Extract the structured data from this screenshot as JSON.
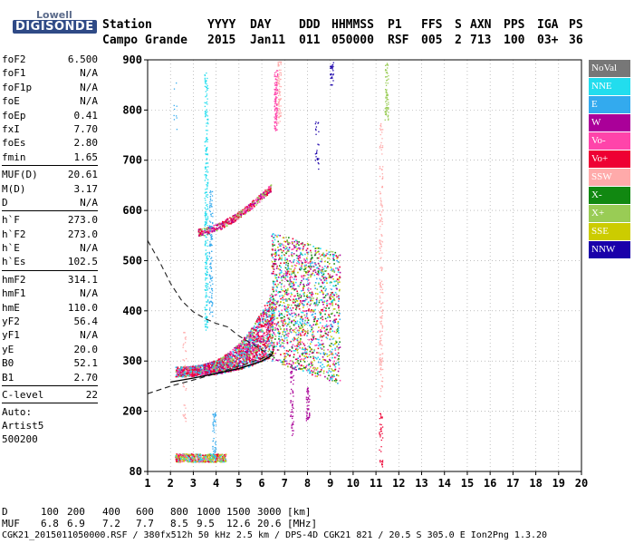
{
  "logo": {
    "line1": "Lowell",
    "line2": "DIGISONDE"
  },
  "header": {
    "station_label": "Station",
    "station_name": "Campo Grande",
    "columns": [
      "YYYY",
      "DAY",
      "DDD",
      "HHMMSS",
      "P1",
      "FFS",
      "S",
      "AXN",
      "PPS",
      "IGA",
      "PS"
    ],
    "values": [
      "2015",
      "Jan11",
      "011",
      "050000",
      "RSF",
      "005",
      "2",
      "713",
      "100",
      "03+",
      "36"
    ]
  },
  "params": {
    "group1": [
      {
        "name": "foF2",
        "value": "6.500"
      },
      {
        "name": "foF1",
        "value": "N/A"
      },
      {
        "name": "foF1p",
        "value": "N/A"
      },
      {
        "name": "foE",
        "value": "N/A"
      },
      {
        "name": "foEp",
        "value": "0.41"
      },
      {
        "name": "fxI",
        "value": "7.70"
      },
      {
        "name": "foEs",
        "value": "2.80"
      },
      {
        "name": "fmin",
        "value": "1.65"
      }
    ],
    "group2": [
      {
        "name": "MUF(D)",
        "value": "20.61"
      },
      {
        "name": "M(D)",
        "value": "3.17"
      },
      {
        "name": "D",
        "value": "N/A"
      }
    ],
    "group3": [
      {
        "name": "h`F",
        "value": "273.0"
      },
      {
        "name": "h`F2",
        "value": "273.0"
      },
      {
        "name": "h`E",
        "value": "N/A"
      },
      {
        "name": "h`Es",
        "value": "102.5"
      }
    ],
    "group4": [
      {
        "name": "hmF2",
        "value": "314.1"
      },
      {
        "name": "hmF1",
        "value": "N/A"
      },
      {
        "name": "hmE",
        "value": "110.0"
      },
      {
        "name": "yF2",
        "value": "56.4"
      },
      {
        "name": "yF1",
        "value": "N/A"
      },
      {
        "name": "yE",
        "value": "20.0"
      },
      {
        "name": "B0",
        "value": "52.1"
      },
      {
        "name": "B1",
        "value": "2.70"
      }
    ],
    "group5": [
      {
        "name": "C-level",
        "value": "22"
      }
    ],
    "auto_label": "Auto:",
    "artist": "Artist5",
    "code": "500200"
  },
  "legend": [
    {
      "label": "NoVal",
      "color": "#777777"
    },
    {
      "label": "NNE",
      "color": "#22ddee"
    },
    {
      "label": "E",
      "color": "#33aaee"
    },
    {
      "label": "W",
      "color": "#aa0099"
    },
    {
      "label": "Vo-",
      "color": "#ff44aa"
    },
    {
      "label": "Vo+",
      "color": "#ee0033"
    },
    {
      "label": "SSW",
      "color": "#ffaaaa"
    },
    {
      "label": "X-",
      "color": "#118811"
    },
    {
      "label": "X+",
      "color": "#99cc55"
    },
    {
      "label": "SSE",
      "color": "#cccc00"
    },
    {
      "label": "NNW",
      "color": "#1a00aa"
    }
  ],
  "chart_data": {
    "type": "scatter",
    "x_ticks": [
      "1",
      "2",
      "3",
      "4",
      "5",
      "6",
      "7",
      "8",
      "9",
      "10",
      "11",
      "12",
      "13",
      "14",
      "15",
      "16",
      "17",
      "18",
      "19",
      "20"
    ],
    "y_ticks": [
      "80",
      "200",
      "300",
      "400",
      "500",
      "600",
      "700",
      "800",
      "900"
    ],
    "xlim": [
      1,
      20
    ],
    "ylim": [
      80,
      900
    ],
    "trace_dashed": [
      [
        1,
        540
      ],
      [
        1.5,
        500
      ],
      [
        2,
        455
      ],
      [
        2.5,
        420
      ],
      [
        3,
        398
      ],
      [
        3.5,
        385
      ],
      [
        4,
        375
      ],
      [
        4.5,
        368
      ],
      [
        5,
        350
      ],
      [
        5.5,
        336
      ],
      [
        6,
        322
      ],
      [
        6.4,
        312
      ]
    ],
    "trace_solid": [
      [
        2,
        258
      ],
      [
        3,
        266
      ],
      [
        4,
        275
      ],
      [
        5,
        285
      ],
      [
        5.5,
        292
      ],
      [
        6,
        300
      ],
      [
        6.4,
        310
      ],
      [
        6.5,
        320
      ]
    ],
    "trace_dashed_low": [
      [
        1,
        235
      ],
      [
        2,
        250
      ],
      [
        3,
        262
      ],
      [
        4,
        275
      ],
      [
        5,
        290
      ],
      [
        6,
        305
      ],
      [
        6.4,
        315
      ]
    ]
  },
  "footer": {
    "d_label": "D",
    "d_values": [
      "100",
      "200",
      "400",
      "600",
      "800",
      "1000",
      "1500",
      "3000",
      "[km]"
    ],
    "muf_label": "MUF",
    "muf_values": [
      "6.8",
      "6.9",
      "7.2",
      "7.7",
      "8.5",
      "9.5",
      "12.6",
      "20.6",
      "[MHz]"
    ],
    "file_line": "CGK21_2015011050000.RSF / 380fx512h 50 kHz 2.5 km / DPS-4D CGK21 821 / 20.5 S 305.0 E Ion2Png 1.3.20"
  }
}
